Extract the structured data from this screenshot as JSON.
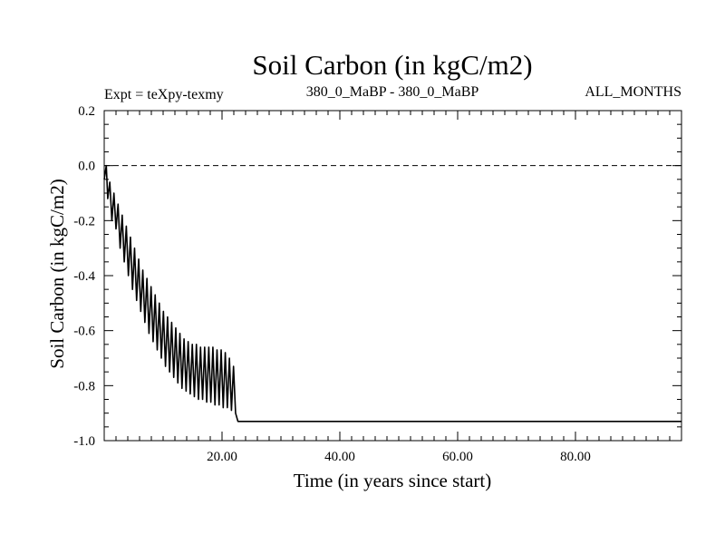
{
  "chart_data": {
    "type": "line",
    "title": "Soil Carbon (in kgC/m2)",
    "subtitle_left": "Expt = teXpy-texmy",
    "subtitle_center": "380_0_MaBP - 380_0_MaBP",
    "subtitle_right": "ALL_MONTHS",
    "xlabel": "Time (in years since start)",
    "ylabel": "Soil Carbon (in kgC/m2)",
    "xlim": [
      0,
      98
    ],
    "ylim": [
      -1.0,
      0.2
    ],
    "x_ticks": [
      {
        "value": 20,
        "label": "20.00"
      },
      {
        "value": 40,
        "label": "40.00"
      },
      {
        "value": 60,
        "label": "60.00"
      },
      {
        "value": 80,
        "label": "80.00"
      }
    ],
    "y_ticks": [
      {
        "value": 0.2,
        "label": "0.2"
      },
      {
        "value": 0.0,
        "label": "0.0"
      },
      {
        "value": -0.2,
        "label": "-0.2"
      },
      {
        "value": -0.4,
        "label": "-0.4"
      },
      {
        "value": -0.6,
        "label": "-0.6"
      },
      {
        "value": -0.8,
        "label": "-0.8"
      },
      {
        "value": -1.0,
        "label": "-1.0"
      }
    ],
    "reference_line": {
      "y": 0.0,
      "style": "dashed"
    },
    "series": [
      {
        "points": [
          [
            0.0,
            -0.05
          ],
          [
            0.35,
            0.0
          ],
          [
            0.6,
            -0.12
          ],
          [
            0.95,
            -0.06
          ],
          [
            1.3,
            -0.2
          ],
          [
            1.65,
            -0.1
          ],
          [
            2.0,
            -0.23
          ],
          [
            2.35,
            -0.14
          ],
          [
            2.7,
            -0.3
          ],
          [
            3.05,
            -0.18
          ],
          [
            3.4,
            -0.35
          ],
          [
            3.75,
            -0.22
          ],
          [
            4.1,
            -0.4
          ],
          [
            4.45,
            -0.26
          ],
          [
            4.8,
            -0.45
          ],
          [
            5.15,
            -0.3
          ],
          [
            5.5,
            -0.49
          ],
          [
            5.85,
            -0.34
          ],
          [
            6.2,
            -0.53
          ],
          [
            6.55,
            -0.38
          ],
          [
            6.9,
            -0.57
          ],
          [
            7.25,
            -0.41
          ],
          [
            7.6,
            -0.61
          ],
          [
            7.95,
            -0.44
          ],
          [
            8.3,
            -0.64
          ],
          [
            8.65,
            -0.47
          ],
          [
            9.0,
            -0.67
          ],
          [
            9.35,
            -0.5
          ],
          [
            9.7,
            -0.7
          ],
          [
            10.05,
            -0.53
          ],
          [
            10.4,
            -0.73
          ],
          [
            10.75,
            -0.55
          ],
          [
            11.1,
            -0.75
          ],
          [
            11.45,
            -0.57
          ],
          [
            11.8,
            -0.77
          ],
          [
            12.15,
            -0.59
          ],
          [
            12.5,
            -0.79
          ],
          [
            12.85,
            -0.61
          ],
          [
            13.2,
            -0.81
          ],
          [
            13.55,
            -0.63
          ],
          [
            13.9,
            -0.82
          ],
          [
            14.25,
            -0.64
          ],
          [
            14.6,
            -0.83
          ],
          [
            14.95,
            -0.65
          ],
          [
            15.3,
            -0.84
          ],
          [
            15.65,
            -0.65
          ],
          [
            16.0,
            -0.85
          ],
          [
            16.35,
            -0.66
          ],
          [
            16.7,
            -0.85
          ],
          [
            17.05,
            -0.66
          ],
          [
            17.4,
            -0.86
          ],
          [
            17.75,
            -0.66
          ],
          [
            18.1,
            -0.86
          ],
          [
            18.45,
            -0.66
          ],
          [
            18.8,
            -0.87
          ],
          [
            19.15,
            -0.67
          ],
          [
            19.5,
            -0.87
          ],
          [
            19.85,
            -0.67
          ],
          [
            20.2,
            -0.88
          ],
          [
            20.55,
            -0.68
          ],
          [
            20.9,
            -0.88
          ],
          [
            21.25,
            -0.7
          ],
          [
            21.6,
            -0.89
          ],
          [
            21.95,
            -0.73
          ],
          [
            22.3,
            -0.9
          ],
          [
            22.7,
            -0.93
          ],
          [
            98.0,
            -0.93
          ]
        ]
      }
    ]
  }
}
